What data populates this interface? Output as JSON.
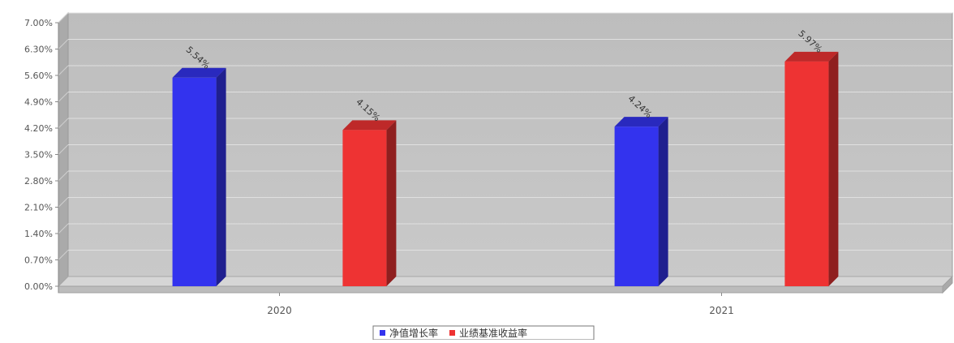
{
  "chart_data": {
    "type": "bar",
    "title": "",
    "xlabel": "",
    "ylabel": "",
    "categories": [
      "2020",
      "2021"
    ],
    "series": [
      {
        "name": "净值增长率",
        "color": "#3333ee",
        "values": [
          5.54,
          4.24
        ]
      },
      {
        "name": "业绩基准收益率",
        "color": "#ee3333",
        "values": [
          4.15,
          5.97
        ]
      }
    ],
    "value_labels": [
      [
        "5.54%",
        "4.24%"
      ],
      [
        "4.15%",
        "5.97%"
      ]
    ],
    "yticks": [
      "0.00%",
      "0.70%",
      "1.40%",
      "2.10%",
      "2.80%",
      "3.50%",
      "4.20%",
      "4.90%",
      "5.60%",
      "6.30%",
      "7.00%"
    ],
    "ylim": [
      0,
      7
    ],
    "grid": true,
    "legend_position": "bottom-center",
    "style": "3d-bar",
    "plot_background": "#c4c4c4"
  }
}
